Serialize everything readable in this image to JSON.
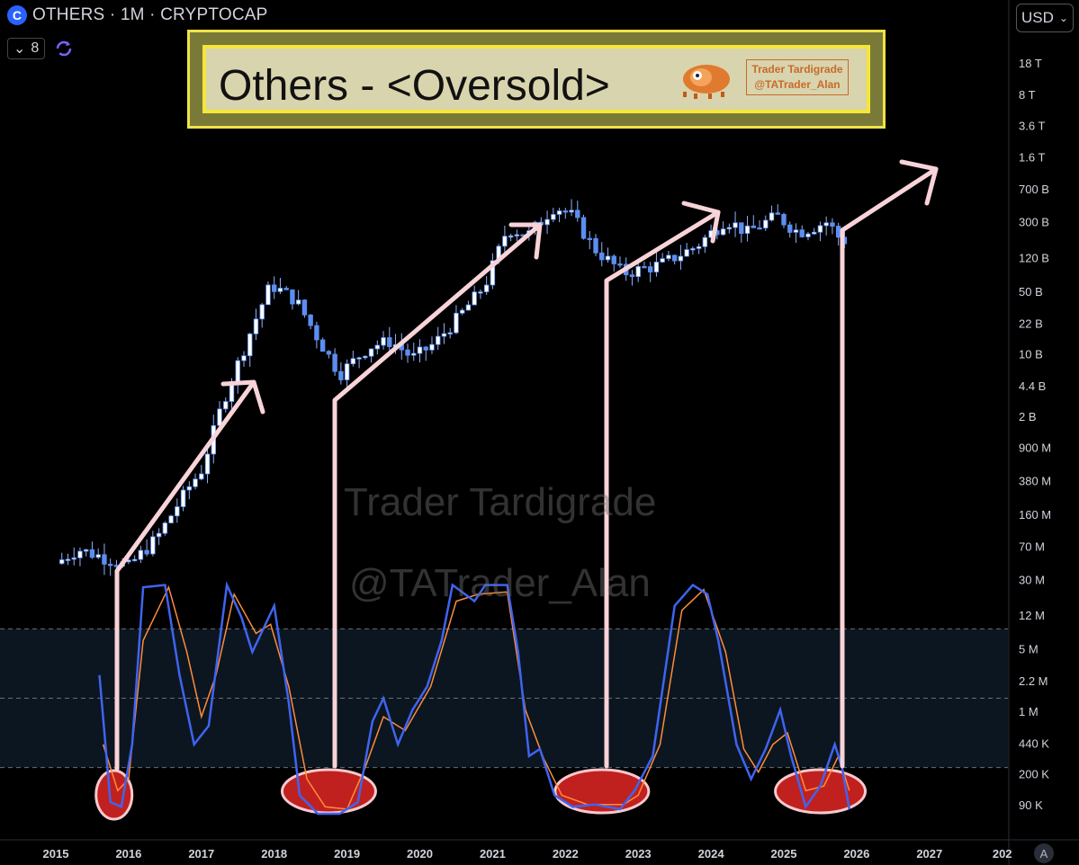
{
  "header": {
    "symbol": "OTHERS · 1M · CRYPTOCAP",
    "indicator_count": "8",
    "currency": "USD",
    "auto_label": "A"
  },
  "banner": {
    "title": "Others - <Oversold>",
    "brand_line1": "Trader Tardigrade",
    "brand_line2": "@TATrader_Alan"
  },
  "watermark": {
    "line1": "Trader Tardigrade",
    "line2": "@TATrader_Alan"
  },
  "colors": {
    "candle_up": "#ffffff",
    "candle_body": "#5b8ef0",
    "stoch_k": "#3f64f0",
    "stoch_d": "#ff8c3a",
    "arrow": "#f8d3d8",
    "oversold_ellipse": "#c0211e"
  },
  "chart_data": {
    "type": "candlestick",
    "scale": "log",
    "y_ticks": [
      "18 T",
      "8 T",
      "3.6 T",
      "1.6 T",
      "700 B",
      "300 B",
      "120 B",
      "50 B",
      "22 B",
      "10 B",
      "4.4 B",
      "2 B",
      "900 M",
      "380 M",
      "160 M",
      "70 M",
      "30 M",
      "12 M",
      "5 M",
      "2.2 M",
      "1 M",
      "440 K",
      "200 K",
      "90 K"
    ],
    "x_ticks": [
      "2015",
      "2016",
      "2017",
      "2018",
      "2019",
      "2020",
      "2021",
      "2022",
      "2023",
      "2024",
      "2025",
      "2026",
      "2027",
      "202"
    ],
    "price_anchors": [
      {
        "t": 2015.0,
        "v": 45000000
      },
      {
        "t": 2015.3,
        "v": 65000000
      },
      {
        "t": 2015.6,
        "v": 55000000
      },
      {
        "t": 2016.0,
        "v": 42000000
      },
      {
        "t": 2016.4,
        "v": 90000000
      },
      {
        "t": 2016.8,
        "v": 300000000
      },
      {
        "t": 2017.0,
        "v": 500000000
      },
      {
        "t": 2017.3,
        "v": 3000000000
      },
      {
        "t": 2017.7,
        "v": 20000000000
      },
      {
        "t": 2017.95,
        "v": 60000000000
      },
      {
        "t": 2018.3,
        "v": 40000000000
      },
      {
        "t": 2018.6,
        "v": 15000000000
      },
      {
        "t": 2018.9,
        "v": 6000000000
      },
      {
        "t": 2019.3,
        "v": 12000000000
      },
      {
        "t": 2019.6,
        "v": 14000000000
      },
      {
        "t": 2019.9,
        "v": 9000000000
      },
      {
        "t": 2020.2,
        "v": 13000000000
      },
      {
        "t": 2020.6,
        "v": 30000000000
      },
      {
        "t": 2020.9,
        "v": 60000000000
      },
      {
        "t": 2021.2,
        "v": 250000000000
      },
      {
        "t": 2021.5,
        "v": 220000000000
      },
      {
        "t": 2021.85,
        "v": 450000000000
      },
      {
        "t": 2022.1,
        "v": 350000000000
      },
      {
        "t": 2022.4,
        "v": 150000000000
      },
      {
        "t": 2022.8,
        "v": 80000000000
      },
      {
        "t": 2023.3,
        "v": 100000000000
      },
      {
        "t": 2023.8,
        "v": 160000000000
      },
      {
        "t": 2024.2,
        "v": 320000000000
      },
      {
        "t": 2024.5,
        "v": 230000000000
      },
      {
        "t": 2024.9,
        "v": 350000000000
      },
      {
        "t": 2025.2,
        "v": 230000000000
      },
      {
        "t": 2025.6,
        "v": 300000000000
      },
      {
        "t": 2025.8,
        "v": 180000000000
      },
      {
        "t": 2025.9,
        "v": 200000000000
      }
    ],
    "stoch_k": [
      {
        "t": 2015.6,
        "v": 60
      },
      {
        "t": 2015.75,
        "v": 5
      },
      {
        "t": 2015.9,
        "v": 3
      },
      {
        "t": 2016.05,
        "v": 30
      },
      {
        "t": 2016.2,
        "v": 98
      },
      {
        "t": 2016.5,
        "v": 99
      },
      {
        "t": 2016.7,
        "v": 60
      },
      {
        "t": 2016.9,
        "v": 30
      },
      {
        "t": 2017.1,
        "v": 38
      },
      {
        "t": 2017.35,
        "v": 99
      },
      {
        "t": 2017.55,
        "v": 85
      },
      {
        "t": 2017.7,
        "v": 70
      },
      {
        "t": 2017.85,
        "v": 80
      },
      {
        "t": 2018.0,
        "v": 90
      },
      {
        "t": 2018.2,
        "v": 48
      },
      {
        "t": 2018.35,
        "v": 8
      },
      {
        "t": 2018.6,
        "v": 0
      },
      {
        "t": 2018.9,
        "v": 0
      },
      {
        "t": 2019.15,
        "v": 5
      },
      {
        "t": 2019.35,
        "v": 40
      },
      {
        "t": 2019.5,
        "v": 50
      },
      {
        "t": 2019.7,
        "v": 30
      },
      {
        "t": 2019.9,
        "v": 45
      },
      {
        "t": 2020.1,
        "v": 55
      },
      {
        "t": 2020.3,
        "v": 75
      },
      {
        "t": 2020.45,
        "v": 99
      },
      {
        "t": 2020.75,
        "v": 92
      },
      {
        "t": 2020.9,
        "v": 99
      },
      {
        "t": 2021.2,
        "v": 99
      },
      {
        "t": 2021.35,
        "v": 70
      },
      {
        "t": 2021.5,
        "v": 25
      },
      {
        "t": 2021.65,
        "v": 28
      },
      {
        "t": 2021.85,
        "v": 8
      },
      {
        "t": 2022.1,
        "v": 3
      },
      {
        "t": 2022.4,
        "v": 4
      },
      {
        "t": 2022.75,
        "v": 2
      },
      {
        "t": 2022.95,
        "v": 10
      },
      {
        "t": 2023.2,
        "v": 25
      },
      {
        "t": 2023.5,
        "v": 90
      },
      {
        "t": 2023.75,
        "v": 99
      },
      {
        "t": 2023.95,
        "v": 95
      },
      {
        "t": 2024.1,
        "v": 75
      },
      {
        "t": 2024.35,
        "v": 30
      },
      {
        "t": 2024.55,
        "v": 15
      },
      {
        "t": 2024.75,
        "v": 28
      },
      {
        "t": 2024.95,
        "v": 45
      },
      {
        "t": 2025.1,
        "v": 25
      },
      {
        "t": 2025.3,
        "v": 3
      },
      {
        "t": 2025.5,
        "v": 12
      },
      {
        "t": 2025.7,
        "v": 30
      },
      {
        "t": 2025.8,
        "v": 20
      },
      {
        "t": 2025.9,
        "v": 2
      }
    ],
    "stoch_d": [
      {
        "t": 2015.65,
        "v": 30
      },
      {
        "t": 2015.85,
        "v": 10
      },
      {
        "t": 2016.0,
        "v": 15
      },
      {
        "t": 2016.2,
        "v": 75
      },
      {
        "t": 2016.55,
        "v": 98
      },
      {
        "t": 2016.8,
        "v": 70
      },
      {
        "t": 2017.0,
        "v": 42
      },
      {
        "t": 2017.2,
        "v": 60
      },
      {
        "t": 2017.45,
        "v": 95
      },
      {
        "t": 2017.75,
        "v": 78
      },
      {
        "t": 2017.95,
        "v": 82
      },
      {
        "t": 2018.2,
        "v": 55
      },
      {
        "t": 2018.45,
        "v": 15
      },
      {
        "t": 2018.7,
        "v": 3
      },
      {
        "t": 2019.0,
        "v": 2
      },
      {
        "t": 2019.25,
        "v": 20
      },
      {
        "t": 2019.5,
        "v": 42
      },
      {
        "t": 2019.8,
        "v": 36
      },
      {
        "t": 2020.15,
        "v": 55
      },
      {
        "t": 2020.5,
        "v": 92
      },
      {
        "t": 2020.8,
        "v": 95
      },
      {
        "t": 2021.2,
        "v": 96
      },
      {
        "t": 2021.45,
        "v": 45
      },
      {
        "t": 2021.7,
        "v": 24
      },
      {
        "t": 2021.95,
        "v": 8
      },
      {
        "t": 2022.3,
        "v": 4
      },
      {
        "t": 2022.8,
        "v": 4
      },
      {
        "t": 2023.0,
        "v": 8
      },
      {
        "t": 2023.3,
        "v": 30
      },
      {
        "t": 2023.6,
        "v": 88
      },
      {
        "t": 2023.9,
        "v": 97
      },
      {
        "t": 2024.2,
        "v": 70
      },
      {
        "t": 2024.45,
        "v": 28
      },
      {
        "t": 2024.65,
        "v": 18
      },
      {
        "t": 2024.85,
        "v": 30
      },
      {
        "t": 2025.05,
        "v": 35
      },
      {
        "t": 2025.3,
        "v": 10
      },
      {
        "t": 2025.55,
        "v": 12
      },
      {
        "t": 2025.75,
        "v": 25
      },
      {
        "t": 2025.9,
        "v": 10
      }
    ],
    "stoch_levels": [
      80,
      50,
      20
    ],
    "oversold_zones": [
      {
        "t_center": 2015.8
      },
      {
        "t_center": 2018.85
      },
      {
        "t_center": 2022.6
      },
      {
        "t_center": 2025.6
      }
    ]
  }
}
